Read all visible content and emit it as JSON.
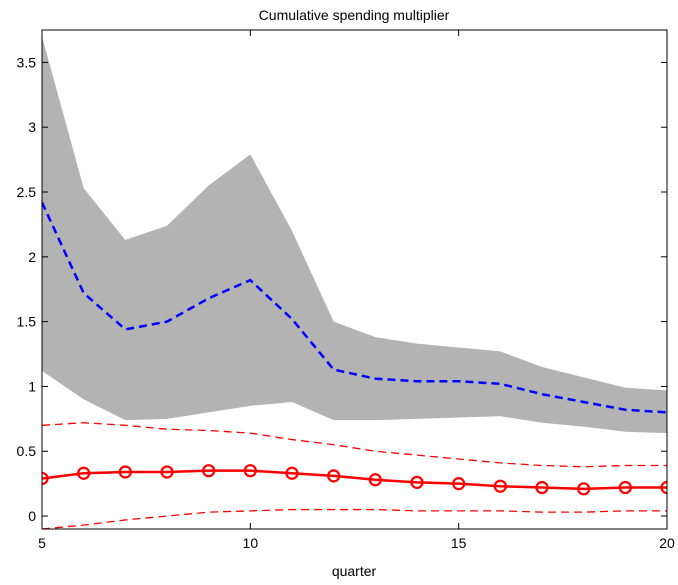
{
  "chart_data": {
    "type": "line",
    "title": "Cumulative spending multiplier",
    "xlabel": "quarter",
    "x": [
      5,
      6,
      7,
      8,
      9,
      10,
      11,
      12,
      13,
      14,
      15,
      16,
      17,
      18,
      19,
      20
    ],
    "xlim": [
      5,
      20
    ],
    "xticks": [
      5,
      10,
      15,
      20
    ],
    "ylim": [
      -0.1,
      3.75
    ],
    "yticks": [
      0,
      0.5,
      1,
      1.5,
      2,
      2.5,
      3,
      3.5
    ],
    "band": {
      "color": "#b3b3b3",
      "upper": [
        3.7,
        2.53,
        2.13,
        2.24,
        2.55,
        2.79,
        2.2,
        1.5,
        1.38,
        1.33,
        1.3,
        1.27,
        1.15,
        1.07,
        0.99,
        0.97
      ],
      "lower": [
        1.12,
        0.9,
        0.74,
        0.75,
        0.8,
        0.85,
        0.88,
        0.74,
        0.74,
        0.75,
        0.76,
        0.77,
        0.72,
        0.69,
        0.65,
        0.64
      ]
    },
    "series": [
      {
        "color": "#0000ff",
        "dashed": true,
        "width": 2.5,
        "markers": false,
        "values": [
          2.42,
          1.72,
          1.44,
          1.5,
          1.68,
          1.82,
          1.52,
          1.13,
          1.06,
          1.04,
          1.04,
          1.02,
          0.94,
          0.88,
          0.82,
          0.8
        ]
      },
      {
        "color": "#ff0000",
        "dashed": true,
        "width": 1.3,
        "markers": false,
        "values": [
          0.7,
          0.72,
          0.7,
          0.67,
          0.66,
          0.64,
          0.59,
          0.55,
          0.5,
          0.47,
          0.44,
          0.41,
          0.39,
          0.38,
          0.39,
          0.39
        ]
      },
      {
        "color": "#ff0000",
        "dashed": true,
        "width": 1.3,
        "markers": false,
        "values": [
          -0.1,
          -0.07,
          -0.03,
          0.0,
          0.03,
          0.04,
          0.05,
          0.05,
          0.05,
          0.04,
          0.04,
          0.04,
          0.03,
          0.03,
          0.04,
          0.04
        ]
      },
      {
        "color": "#ff0000",
        "dashed": false,
        "width": 2.5,
        "markers": true,
        "values": [
          0.29,
          0.33,
          0.34,
          0.34,
          0.35,
          0.35,
          0.33,
          0.31,
          0.28,
          0.26,
          0.25,
          0.23,
          0.22,
          0.21,
          0.22,
          0.22
        ]
      }
    ]
  }
}
